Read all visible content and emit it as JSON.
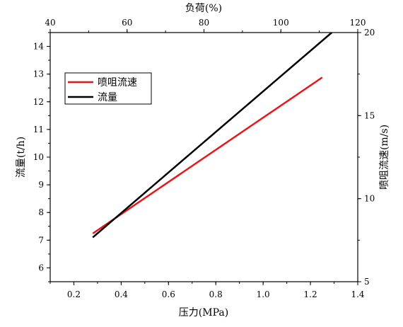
{
  "chart_data": {
    "type": "line",
    "xlabel": "压力(MPa)",
    "ylabel": "流量(t/h)",
    "x2label": "负荷(%)",
    "y2label": "喷咀流速(m/s)",
    "xlim": [
      0.1,
      1.4
    ],
    "ylim": [
      5.5,
      14.5
    ],
    "x2lim": [
      40,
      120
    ],
    "y2lim": [
      5,
      20
    ],
    "xticks": [
      0.2,
      0.4,
      0.6,
      0.8,
      1.0,
      1.2,
      1.4
    ],
    "xtick_labels": [
      "0.2",
      "0.4",
      "0.6",
      "0.8",
      "1.0",
      "1.2",
      "1.4"
    ],
    "yticks": [
      6,
      7,
      8,
      9,
      10,
      11,
      12,
      13,
      14
    ],
    "ytick_labels": [
      "6",
      "7",
      "8",
      "9",
      "10",
      "11",
      "12",
      "13",
      "14"
    ],
    "x2ticks": [
      40,
      60,
      80,
      100,
      120
    ],
    "x2tick_labels": [
      "40",
      "60",
      "80",
      "100",
      "120"
    ],
    "y2ticks": [
      5,
      10,
      15,
      20
    ],
    "y2tick_labels": [
      "5",
      "10",
      "15",
      "20"
    ],
    "legend_position": "upper-left",
    "series": [
      {
        "name": "喷咀流速",
        "axis": "right",
        "color": "#e8161b",
        "x": [
          0.28,
          1.25
        ],
        "y": [
          7.9,
          17.3
        ]
      },
      {
        "name": "流量",
        "axis": "left",
        "color": "#000000",
        "x": [
          0.28,
          1.29
        ],
        "y": [
          7.1,
          14.5
        ]
      }
    ],
    "grid": false
  }
}
